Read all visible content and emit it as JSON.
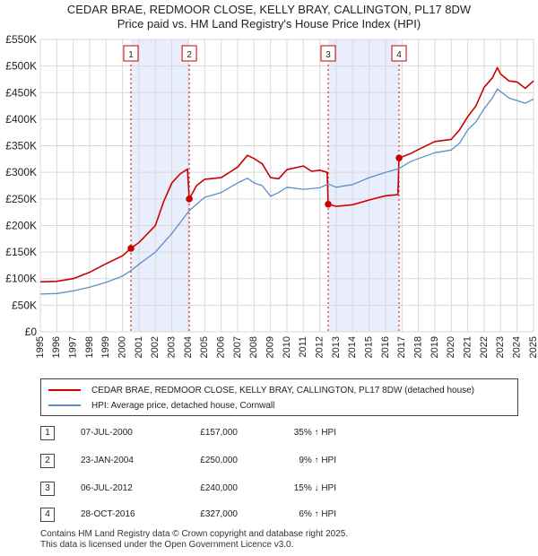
{
  "chart_data": {
    "type": "line",
    "title": "CEDAR BRAE, REDMOOR CLOSE, KELLY BRAY, CALLINGTON, PL17 8DW",
    "subtitle": "Price paid vs. HM Land Registry's House Price Index (HPI)",
    "y_ticks": [
      "£0",
      "£50K",
      "£100K",
      "£150K",
      "£200K",
      "£250K",
      "£300K",
      "£350K",
      "£400K",
      "£450K",
      "£500K",
      "£550K"
    ],
    "y_tick_values": [
      0,
      50000,
      100000,
      150000,
      200000,
      250000,
      300000,
      350000,
      400000,
      450000,
      500000,
      550000
    ],
    "x_ticks": [
      "1995",
      "1996",
      "1997",
      "1998",
      "1999",
      "2000",
      "2001",
      "2002",
      "2003",
      "2004",
      "2005",
      "2006",
      "2007",
      "2008",
      "2009",
      "2010",
      "2011",
      "2012",
      "2013",
      "2014",
      "2015",
      "2016",
      "2017",
      "2018",
      "2019",
      "2020",
      "2021",
      "2022",
      "2023",
      "2024",
      "2025"
    ],
    "xlim": [
      1995,
      2025
    ],
    "ylim": [
      0,
      550000
    ],
    "grid": true,
    "shaded_periods": [
      [
        2000.51,
        2004.06
      ],
      [
        2012.51,
        2016.82
      ]
    ],
    "series": [
      {
        "name": "CEDAR BRAE, REDMOOR CLOSE, KELLY BRAY, CALLINGTON, PL17 8DW (detached house)",
        "color": "#cc0000",
        "points": [
          [
            1995.0,
            94000
          ],
          [
            1996.0,
            95000
          ],
          [
            1997.0,
            100000
          ],
          [
            1998.0,
            112000
          ],
          [
            1999.0,
            128000
          ],
          [
            2000.0,
            143000
          ],
          [
            2000.51,
            157000
          ],
          [
            2001.0,
            168000
          ],
          [
            2002.0,
            200000
          ],
          [
            2002.5,
            245000
          ],
          [
            2003.0,
            280000
          ],
          [
            2003.5,
            297000
          ],
          [
            2003.95,
            306000
          ],
          [
            2004.06,
            250000
          ],
          [
            2004.5,
            275000
          ],
          [
            2005.0,
            287000
          ],
          [
            2006.0,
            290000
          ],
          [
            2007.0,
            310000
          ],
          [
            2007.6,
            332000
          ],
          [
            2008.0,
            326000
          ],
          [
            2008.5,
            316000
          ],
          [
            2009.0,
            290000
          ],
          [
            2009.5,
            288000
          ],
          [
            2010.0,
            305000
          ],
          [
            2011.0,
            312000
          ],
          [
            2011.5,
            302000
          ],
          [
            2012.0,
            304000
          ],
          [
            2012.45,
            300000
          ],
          [
            2012.51,
            240000
          ],
          [
            2013.0,
            236000
          ],
          [
            2014.0,
            239000
          ],
          [
            2015.0,
            248000
          ],
          [
            2015.5,
            252000
          ],
          [
            2016.0,
            256000
          ],
          [
            2016.75,
            258000
          ],
          [
            2016.82,
            327000
          ],
          [
            2017.5,
            335000
          ],
          [
            2018.0,
            343000
          ],
          [
            2019.0,
            358000
          ],
          [
            2020.0,
            362000
          ],
          [
            2020.5,
            380000
          ],
          [
            2021.0,
            405000
          ],
          [
            2021.5,
            425000
          ],
          [
            2022.0,
            460000
          ],
          [
            2022.5,
            478000
          ],
          [
            2022.8,
            497000
          ],
          [
            2023.0,
            485000
          ],
          [
            2023.5,
            472000
          ],
          [
            2024.0,
            470000
          ],
          [
            2024.5,
            458000
          ],
          [
            2025.0,
            472000
          ]
        ]
      },
      {
        "name": "HPI: Average price, detached house, Cornwall",
        "color": "#5b8fc9",
        "points": [
          [
            1995.0,
            71000
          ],
          [
            1996.0,
            72000
          ],
          [
            1997.0,
            77000
          ],
          [
            1998.0,
            84000
          ],
          [
            1999.0,
            93000
          ],
          [
            2000.0,
            105000
          ],
          [
            2000.51,
            115000
          ],
          [
            2001.0,
            127000
          ],
          [
            2002.0,
            150000
          ],
          [
            2003.0,
            185000
          ],
          [
            2004.06,
            228000
          ],
          [
            2005.0,
            253000
          ],
          [
            2006.0,
            262000
          ],
          [
            2007.0,
            280000
          ],
          [
            2007.6,
            289000
          ],
          [
            2008.0,
            280000
          ],
          [
            2008.5,
            275000
          ],
          [
            2009.0,
            255000
          ],
          [
            2009.5,
            262000
          ],
          [
            2010.0,
            272000
          ],
          [
            2011.0,
            268000
          ],
          [
            2012.0,
            271000
          ],
          [
            2012.51,
            278000
          ],
          [
            2013.0,
            272000
          ],
          [
            2014.0,
            277000
          ],
          [
            2015.0,
            290000
          ],
          [
            2016.0,
            300000
          ],
          [
            2016.82,
            307000
          ],
          [
            2017.5,
            320000
          ],
          [
            2018.0,
            326000
          ],
          [
            2019.0,
            337000
          ],
          [
            2020.0,
            342000
          ],
          [
            2020.5,
            355000
          ],
          [
            2021.0,
            380000
          ],
          [
            2021.5,
            395000
          ],
          [
            2022.0,
            420000
          ],
          [
            2022.5,
            440000
          ],
          [
            2022.8,
            457000
          ],
          [
            2023.0,
            452000
          ],
          [
            2023.5,
            440000
          ],
          [
            2024.0,
            435000
          ],
          [
            2024.5,
            430000
          ],
          [
            2025.0,
            438000
          ]
        ]
      }
    ],
    "sales": [
      {
        "label": "1",
        "x": 2000.51,
        "y": 157000
      },
      {
        "label": "2",
        "x": 2004.06,
        "y": 250000
      },
      {
        "label": "3",
        "x": 2012.51,
        "y": 240000
      },
      {
        "label": "4",
        "x": 2016.82,
        "y": 327000
      }
    ]
  },
  "legend": {
    "property": "CEDAR BRAE, REDMOOR CLOSE, KELLY BRAY, CALLINGTON, PL17 8DW (detached house)",
    "hpi": "HPI: Average price, detached house, Cornwall"
  },
  "transactions": [
    {
      "num": "1",
      "date": "07-JUL-2000",
      "price": "£157,000",
      "hpi": "35% ↑ HPI"
    },
    {
      "num": "2",
      "date": "23-JAN-2004",
      "price": "£250,000",
      "hpi": "9% ↑ HPI"
    },
    {
      "num": "3",
      "date": "06-JUL-2012",
      "price": "£240,000",
      "hpi": "15% ↓ HPI"
    },
    {
      "num": "4",
      "date": "28-OCT-2016",
      "price": "£327,000",
      "hpi": "6% ↑ HPI"
    }
  ],
  "footer": {
    "line1": "Contains HM Land Registry data © Crown copyright and database right 2025.",
    "line2": "This data is licensed under the Open Government Licence v3.0."
  },
  "colors": {
    "property": "#cc0000",
    "hpi": "#5b8fc9",
    "shade": "#e8eefb",
    "grid": "#d9d9d9"
  }
}
